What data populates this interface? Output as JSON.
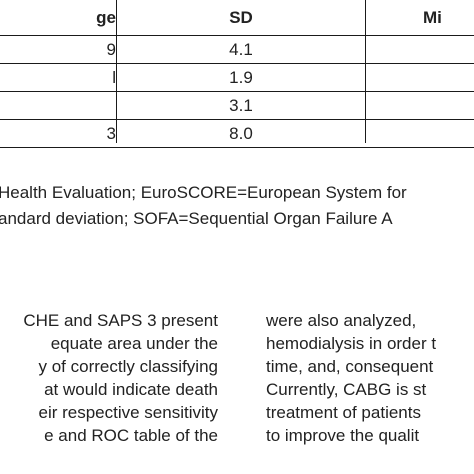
{
  "table": {
    "headers": [
      "ge",
      "SD",
      "Mi"
    ],
    "rows": [
      [
        "9",
        "4.1",
        ""
      ],
      [
        "l",
        "1.9",
        ""
      ],
      [
        "",
        "3.1",
        ""
      ],
      [
        "3",
        "8.0",
        ""
      ]
    ]
  },
  "footnote": {
    "line1": "Health Evaluation; EuroSCORE=European System for",
    "line2": "andard deviation; SOFA=Sequential Organ Failure A"
  },
  "left_column": {
    "lines": [
      "CHE and SAPS 3 present",
      "equate area under the",
      "y of correctly classifying",
      "at would indicate death",
      "eir respective sensitivity",
      "e and ROC table of the"
    ]
  },
  "right_column": {
    "lines": [
      "were also analyzed,",
      "hemodialysis in order t",
      "time, and, consequent",
      "Currently, CABG is st",
      "treatment of patients",
      "to improve the qualit"
    ]
  }
}
